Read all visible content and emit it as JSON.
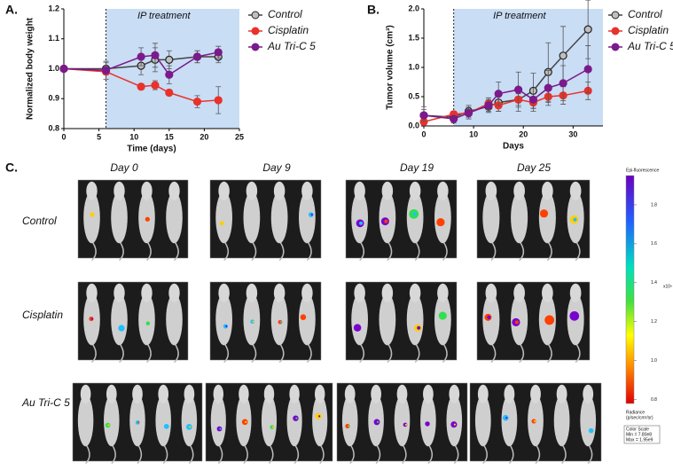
{
  "panels": {
    "a": "A.",
    "b": "B.",
    "c": "C."
  },
  "chart_data": [
    {
      "type": "line",
      "xlabel": "Time (days)",
      "ylabel": "Normalized body weight",
      "x": [
        0,
        6,
        11,
        13,
        15,
        19,
        22
      ],
      "xlim": [
        0,
        25
      ],
      "xticks": [
        0,
        5,
        10,
        15,
        20,
        25
      ],
      "ylim": [
        0.8,
        1.2
      ],
      "yticks": [
        0.8,
        0.9,
        {
          "value": 1,
          "label": "1.0"
        },
        1.1,
        1.2
      ],
      "treatment_start": 6,
      "annotation": "IP treatment",
      "series": [
        {
          "name": "Control",
          "color": "#bfbfbf",
          "values": [
            1.0,
            1.0,
            1.01,
            1.03,
            1.03,
            1.04,
            1.04
          ],
          "errors": [
            0.005,
            0.02,
            0.03,
            0.04,
            0.03,
            0.02,
            0.02
          ]
        },
        {
          "name": "Cisplatin",
          "color": "#e8322b",
          "values": [
            1.0,
            0.99,
            0.94,
            0.945,
            0.92,
            0.89,
            0.895
          ],
          "errors": [
            0.005,
            0.01,
            0.01,
            0.015,
            0.01,
            0.02,
            0.045
          ]
        },
        {
          "name": "Au Tri-C 5",
          "color": "#7b1a8a",
          "values": [
            1.0,
            0.995,
            1.04,
            1.045,
            0.98,
            1.04,
            1.055
          ],
          "errors": [
            0.005,
            0.03,
            0.03,
            0.04,
            0.03,
            0.02,
            0.02
          ]
        }
      ]
    },
    {
      "type": "line",
      "xlabel": "Days",
      "ylabel": "Tumor volume (cm³)",
      "x": [
        0,
        6,
        9,
        13,
        15,
        19,
        22,
        25,
        28,
        33
      ],
      "xlim": [
        0,
        36
      ],
      "xticks": [
        0,
        10,
        20,
        30
      ],
      "ylim": [
        0,
        2
      ],
      "yticks": [
        {
          "value": 0,
          "label": "0.0"
        },
        0.5,
        {
          "value": 1,
          "label": "1.0"
        },
        1.5,
        {
          "value": 2,
          "label": "2.0"
        }
      ],
      "treatment_start": 6,
      "annotation": "IP treatment",
      "series": [
        {
          "name": "Control",
          "color": "#bfbfbf",
          "values": [
            0.18,
            0.15,
            0.25,
            0.33,
            0.4,
            0.45,
            0.6,
            0.92,
            1.2,
            1.65
          ],
          "errors": [
            0.15,
            0.1,
            0.1,
            0.1,
            0.15,
            0.2,
            0.3,
            0.5,
            0.5,
            0.5
          ]
        },
        {
          "name": "Cisplatin",
          "color": "#e8322b",
          "values": [
            0.07,
            0.2,
            0.22,
            0.38,
            0.35,
            0.45,
            0.4,
            0.5,
            0.52,
            0.6
          ],
          "errors": [
            0.05,
            0.05,
            0.05,
            0.1,
            0.1,
            0.1,
            0.1,
            0.1,
            0.15,
            0.15
          ]
        },
        {
          "name": "Au Tri-C 5",
          "color": "#7b1a8a",
          "values": [
            0.18,
            0.12,
            0.22,
            0.35,
            0.55,
            0.62,
            0.45,
            0.65,
            0.73,
            0.97
          ],
          "errors": [
            0.1,
            0.05,
            0.1,
            0.1,
            0.2,
            0.3,
            0.2,
            0.3,
            0.3,
            0.4
          ]
        }
      ]
    }
  ],
  "imaging": {
    "days": [
      "Day 0",
      "Day 9",
      "Day 19",
      "Day 25"
    ],
    "groups": [
      "Control",
      "Cisplatin",
      "Au Tri-C 5"
    ],
    "colorbar": {
      "title": "Epi-fluorescence",
      "unit": "x10⁹",
      "lim": [
        0.78,
        1.95
      ],
      "ticks": [
        0.8,
        {
          "value": 1,
          "label": "1.0"
        },
        1.2,
        1.4,
        1.6,
        1.8
      ],
      "notes": [
        "Radiance",
        "(p/sec/cm²/sr)",
        "Color Scale",
        "Min = 7.80e8",
        "Max = 1.95e9"
      ]
    }
  }
}
